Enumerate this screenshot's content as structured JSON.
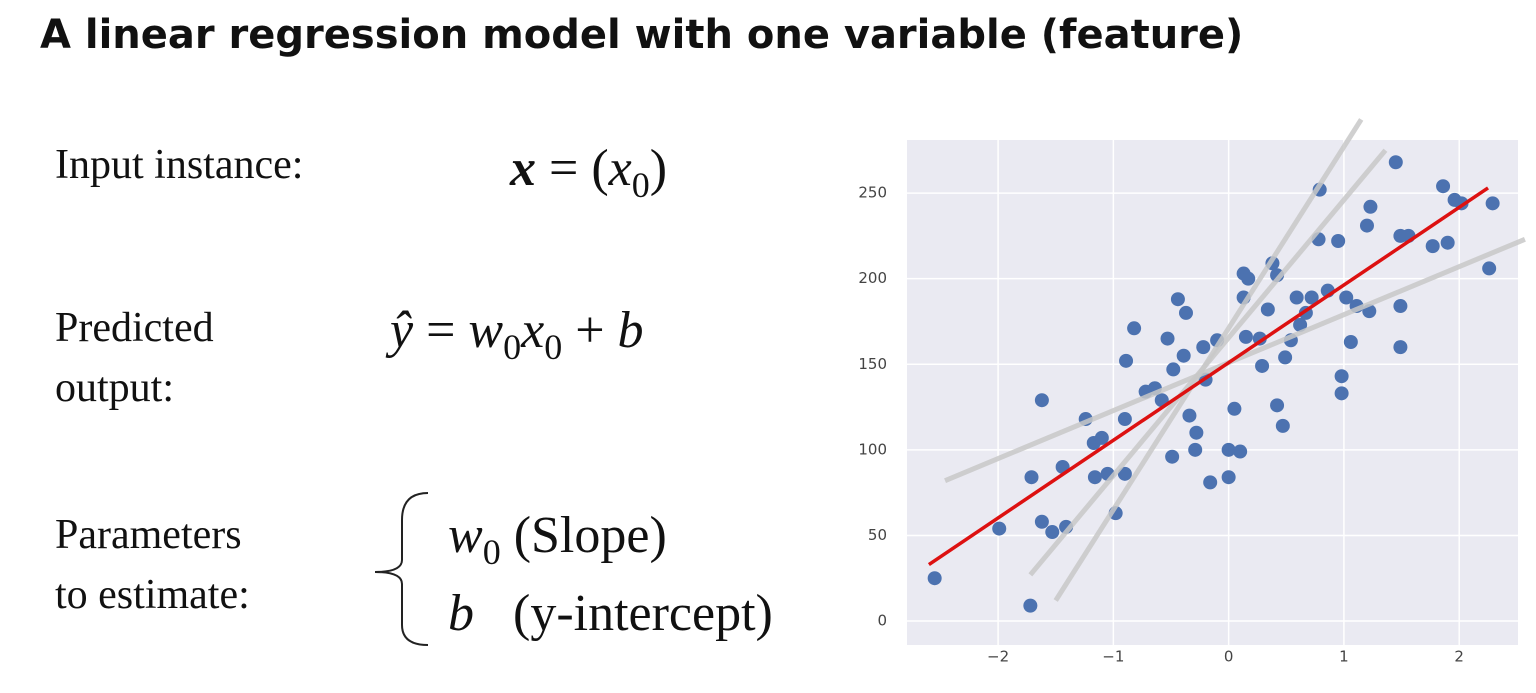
{
  "title": "A linear regression model with one variable (feature)",
  "rows": [
    {
      "label": [
        "Input instance:"
      ],
      "formula": [
        [
          {
            "text": "x",
            "style": "bi"
          },
          {
            "text": " = (",
            "style": "n"
          },
          {
            "text": "x",
            "style": "i"
          },
          {
            "text": "0",
            "style": "sub"
          },
          {
            "text": ")",
            "style": "n"
          }
        ]
      ]
    },
    {
      "label": [
        "Predicted",
        "output:"
      ],
      "formula": [
        [
          {
            "text": "ŷ",
            "style": "i"
          },
          {
            "text": " = ",
            "style": "n"
          },
          {
            "text": "w",
            "style": "i"
          },
          {
            "text": "0",
            "style": "sub"
          },
          {
            "text": "x",
            "style": "i"
          },
          {
            "text": "0",
            "style": "sub"
          },
          {
            "text": " + ",
            "style": "n"
          },
          {
            "text": "b",
            "style": "i"
          }
        ]
      ]
    },
    {
      "label": [
        "Parameters",
        "to estimate:"
      ],
      "formula": [
        [
          {
            "text": "w",
            "style": "i"
          },
          {
            "text": "0",
            "style": "sub"
          },
          {
            "text": " (Slope)",
            "style": "n"
          }
        ],
        [
          {
            "text": "b",
            "style": "i"
          },
          {
            "text": "   (y-intercept)",
            "style": "n"
          }
        ]
      ]
    }
  ],
  "chart_data": {
    "type": "scatter",
    "color": "#4c72b0",
    "background": "#eaeaf2",
    "grid": true,
    "xlim": [
      -2.79,
      2.51
    ],
    "ylim": [
      -14,
      281
    ],
    "xticks": [
      {
        "value": -2,
        "label": "−2"
      },
      {
        "value": -1,
        "label": "−1"
      },
      0,
      1,
      2
    ],
    "yticks": [
      0,
      50,
      100,
      150,
      200,
      250
    ],
    "x": [
      -2.55,
      -1.99,
      -1.72,
      -1.71,
      -1.62,
      -1.62,
      -1.53,
      -1.44,
      -1.41,
      -1.24,
      -1.17,
      -1.1,
      -1.16,
      -1.05,
      -0.98,
      -0.9,
      -0.9,
      -0.89,
      -0.82,
      -0.72,
      -0.64,
      -0.58,
      -0.53,
      -0.48,
      -0.49,
      -0.44,
      -0.37,
      -0.34,
      -0.29,
      -0.28,
      -0.39,
      -0.2,
      -0.16,
      -0.22,
      -0.1,
      0,
      0.05,
      0,
      0.1,
      0.13,
      0.17,
      0.13,
      0.15,
      0.29,
      0.27,
      0.34,
      0.38,
      0.42,
      0.42,
      0.47,
      0.49,
      0.54,
      0.59,
      0.62,
      0.67,
      0.78,
      0.79,
      0.86,
      0.72,
      0.95,
      0.98,
      0.98,
      1.02,
      1.06,
      1.11,
      1.2,
      1.23,
      1.22,
      1.45,
      1.49,
      1.49,
      1.49,
      1.56,
      1.77,
      1.86,
      1.9,
      1.96,
      2.02,
      2.26,
      2.29
    ],
    "y": [
      25,
      54,
      9,
      84,
      129,
      58,
      52,
      90,
      55,
      118,
      104,
      107,
      84,
      86,
      63,
      86,
      118,
      152,
      171,
      134,
      136,
      129,
      165,
      147,
      96,
      188,
      180,
      120,
      100,
      110,
      155,
      141,
      81,
      160,
      164,
      100,
      124,
      84,
      99,
      203,
      200,
      189,
      166,
      149,
      165,
      182,
      209,
      126,
      202,
      114,
      154,
      164,
      189,
      173,
      180,
      223,
      252,
      193,
      189,
      222,
      143,
      133,
      189,
      163,
      184,
      231,
      242,
      181,
      268,
      225,
      184,
      160,
      225,
      219,
      254,
      221,
      246,
      244,
      206,
      244
    ],
    "fits": [
      {
        "color": "#c8c8c8",
        "x": [
          -1.5,
          1.15
        ],
        "y": [
          12,
          293
        ]
      },
      {
        "color": "#c8c8c8",
        "x": [
          -1.72,
          1.36
        ],
        "y": [
          27,
          275
        ]
      },
      {
        "color": "#c8c8c8",
        "x": [
          -2.46,
          2.57
        ],
        "y": [
          82,
          223
        ]
      },
      {
        "color": "#dd1111",
        "x": [
          -2.6,
          2.25
        ],
        "y": [
          33,
          253
        ]
      }
    ]
  }
}
